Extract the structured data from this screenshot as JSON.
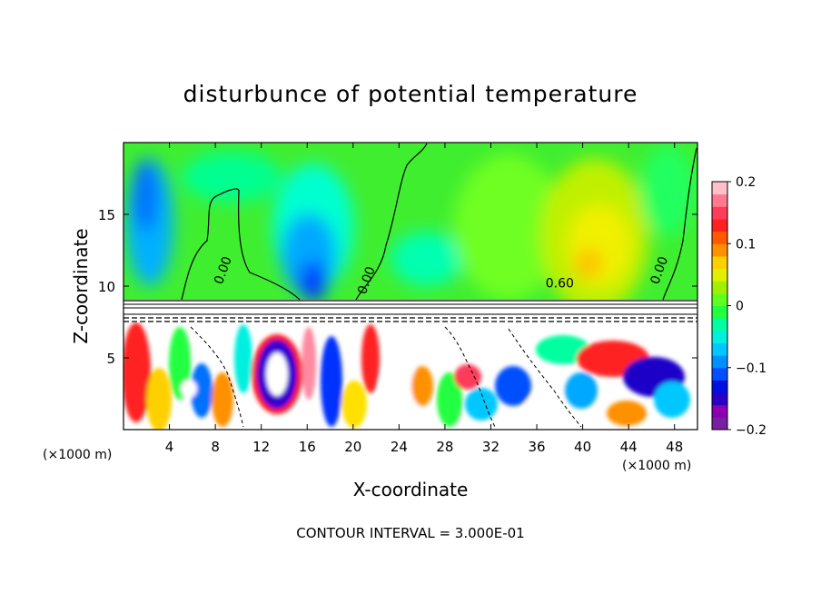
{
  "chart_data": {
    "type": "heatmap",
    "title": "disturbunce of potential temperature",
    "xlabel": "X-coordinate",
    "ylabel": "Z-coordinate",
    "x_unit_label": "(×1000 m)",
    "x_unit_label_right": "(×1000 m)",
    "xlim": [
      0,
      50
    ],
    "ylim": [
      0,
      20
    ],
    "x_ticks": [
      4,
      8,
      12,
      16,
      20,
      24,
      28,
      32,
      36,
      40,
      44,
      48
    ],
    "y_ticks": [
      5,
      10,
      15
    ],
    "colorbar": {
      "min": -0.2,
      "max": 0.2,
      "ticks": [
        {
          "value": 0.2,
          "label": "0.2"
        },
        {
          "value": 0.1,
          "label": "0.1"
        },
        {
          "value": 0,
          "label": "0"
        },
        {
          "value": -0.1,
          "label": "−0.1"
        },
        {
          "value": -0.2,
          "label": "−0.2"
        }
      ],
      "colors": [
        "#7a1fa2",
        "#8a00b0",
        "#2a00c8",
        "#0010e0",
        "#0050ff",
        "#0090ff",
        "#00c8ff",
        "#00f0e0",
        "#00ffa0",
        "#20ff40",
        "#60ff20",
        "#a0f000",
        "#e0f000",
        "#ffd000",
        "#ff9000",
        "#ff5a00",
        "#ff2020",
        "#ff3a5a",
        "#ff7a90",
        "#ffc0c8"
      ]
    },
    "contour_labels": [
      {
        "x": 9.0,
        "z": 11.0,
        "text": "0.00"
      },
      {
        "x": 21.5,
        "z": 10.3,
        "text": "0.00"
      },
      {
        "x": 38.0,
        "z": 9.9,
        "text": "0.60"
      },
      {
        "x": 47.0,
        "z": 11.0,
        "text": "0.00"
      }
    ],
    "contour_interval_text": "CONTOUR INTERVAL = 3.000E-01"
  }
}
